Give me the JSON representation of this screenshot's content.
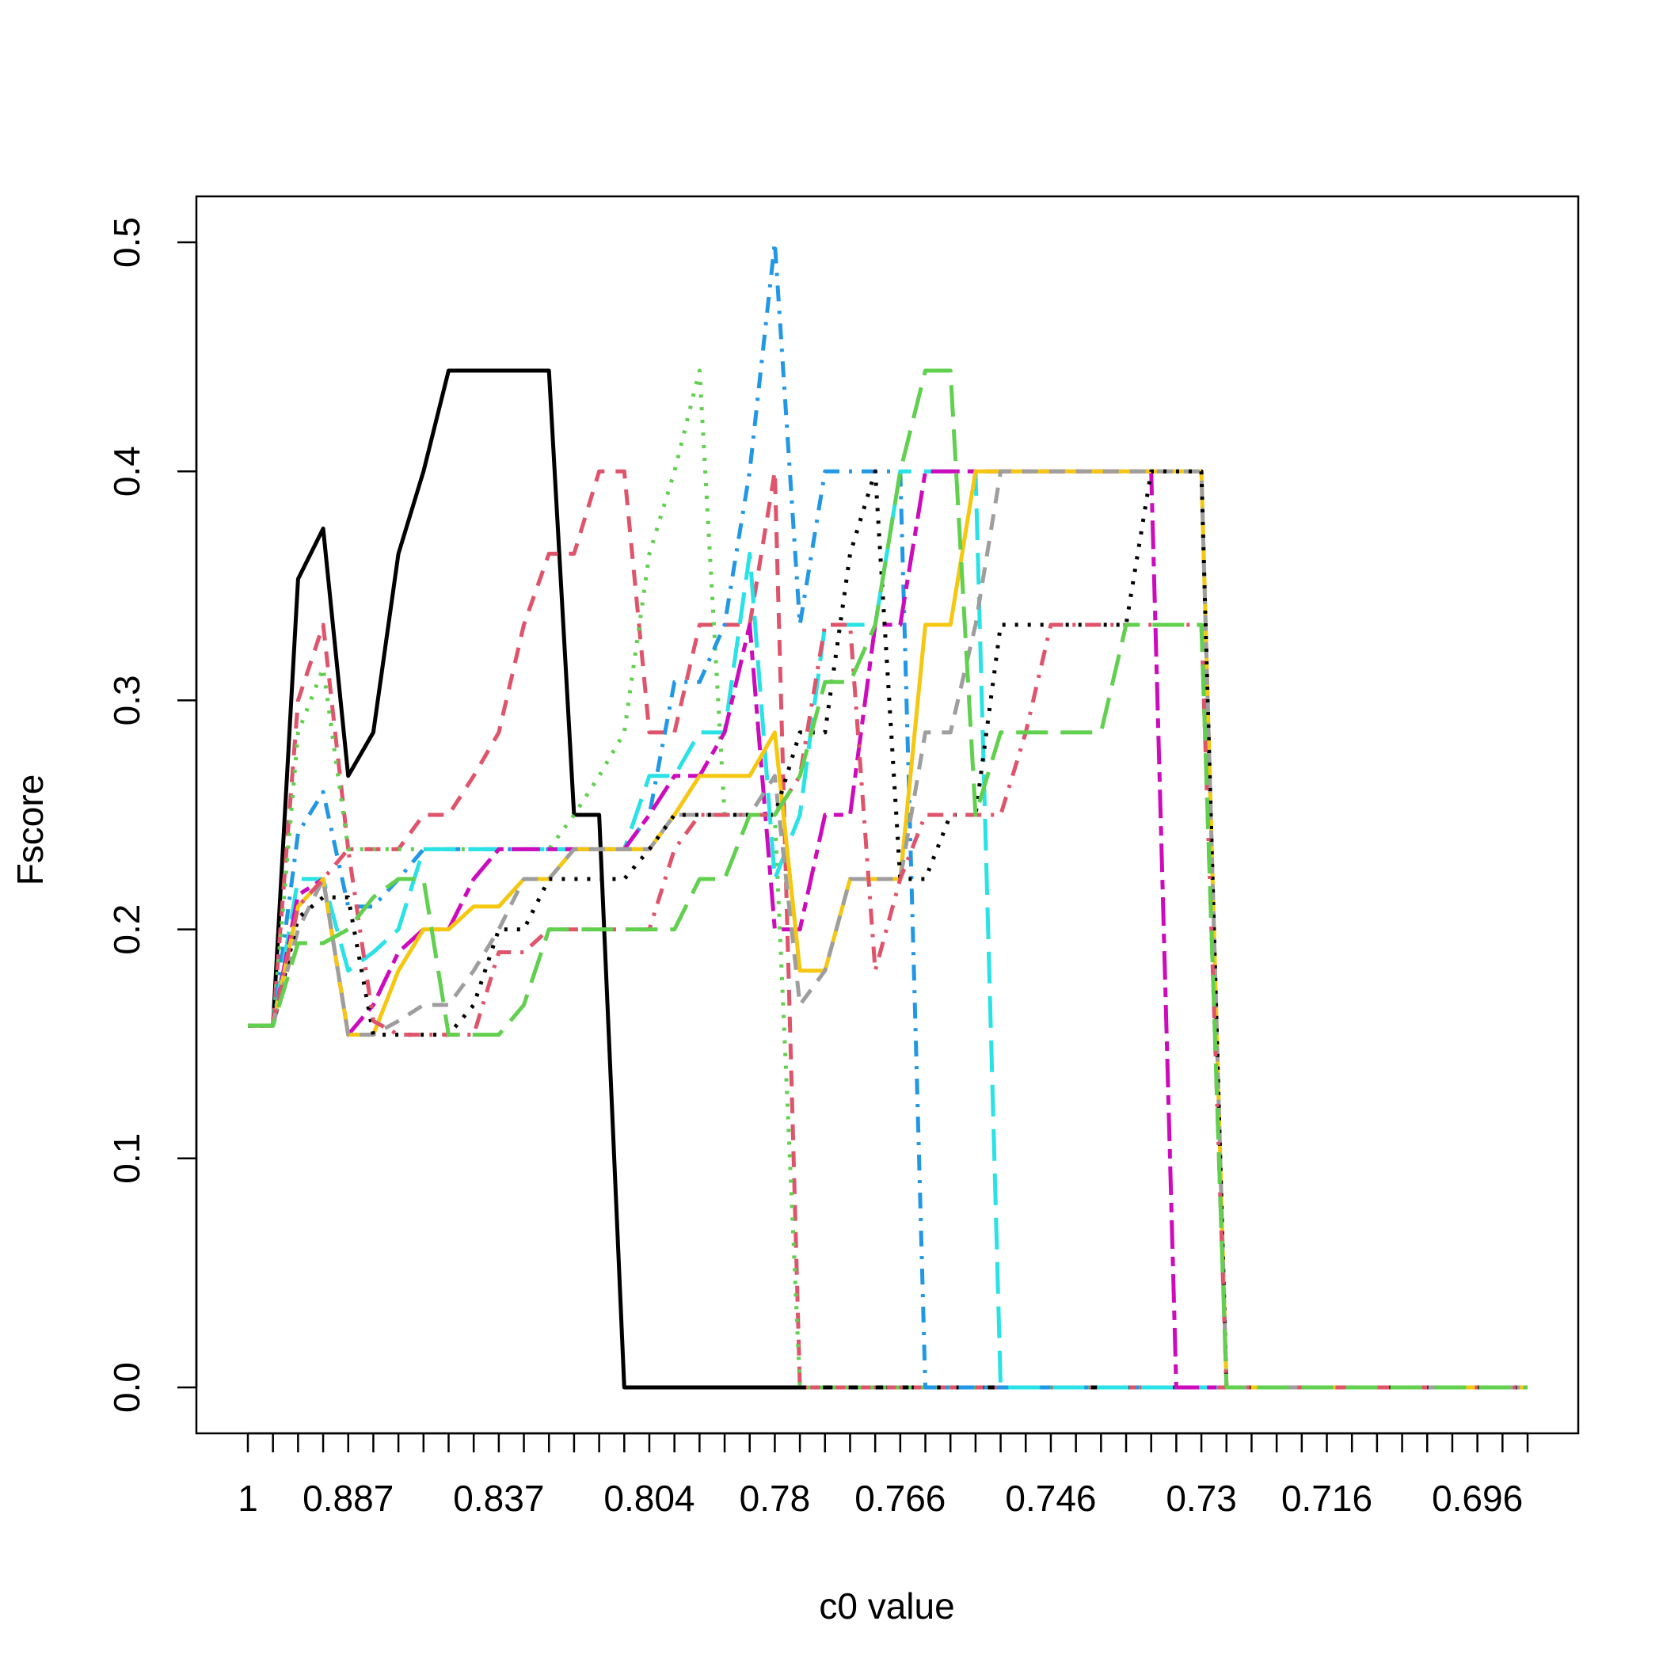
{
  "chart_data": {
    "type": "line",
    "title": "",
    "xlabel": "c0 value",
    "ylabel": "Fscore",
    "ylim": [
      0,
      0.5
    ],
    "y_ticks": [
      "0.0",
      "0.1",
      "0.2",
      "0.3",
      "0.4",
      "0.5"
    ],
    "x_tick_count": 52,
    "x_tick_labels": [
      {
        "index": 1,
        "label": "1"
      },
      {
        "index": 5,
        "label": "0.887"
      },
      {
        "index": 11,
        "label": "0.837"
      },
      {
        "index": 17,
        "label": "0.804"
      },
      {
        "index": 22,
        "label": "0.78"
      },
      {
        "index": 27,
        "label": "0.766"
      },
      {
        "index": 33,
        "label": "0.746"
      },
      {
        "index": 39,
        "label": "0.73"
      },
      {
        "index": 44,
        "label": "0.716"
      },
      {
        "index": 50,
        "label": "0.696"
      }
    ],
    "grid": false,
    "legend": "none",
    "series": [
      {
        "color": "#000000",
        "dash": "solid",
        "values": [
          0.158,
          0.158,
          0.353,
          0.375,
          0.267,
          0.286,
          0.364,
          0.4,
          0.444,
          0.444,
          0.444,
          0.444,
          0.444,
          0.25,
          0.25,
          0,
          0,
          0,
          0,
          0,
          0,
          0,
          0,
          0,
          0,
          0,
          0,
          0,
          0,
          0,
          0,
          0,
          0,
          0,
          0,
          0,
          0,
          0,
          0,
          0,
          0,
          0,
          0,
          0,
          0,
          0,
          0,
          0,
          0,
          0,
          0,
          0
        ]
      },
      {
        "color": "#DF536B",
        "dash": "dashed",
        "values": [
          0.158,
          0.158,
          0.3,
          0.333,
          0.235,
          0.235,
          0.235,
          0.25,
          0.25,
          0.267,
          0.286,
          0.333,
          0.364,
          0.364,
          0.4,
          0.4,
          0.286,
          0.286,
          0.333,
          0.333,
          0.333,
          0.4,
          0,
          0,
          0,
          0,
          0,
          0,
          0,
          0,
          0,
          0,
          0,
          0,
          0,
          0,
          0,
          0,
          0,
          0,
          0,
          0,
          0,
          0,
          0,
          0,
          0,
          0,
          0,
          0,
          0,
          0
        ]
      },
      {
        "color": "#61D04F",
        "dash": "dotted",
        "values": [
          0.158,
          0.158,
          0.286,
          0.314,
          0.235,
          0.235,
          0.235,
          0.235,
          0.235,
          0.235,
          0.235,
          0.235,
          0.235,
          0.25,
          0.267,
          0.286,
          0.364,
          0.4,
          0.444,
          0.25,
          0.25,
          0.25,
          0,
          0,
          0,
          0,
          0,
          0,
          0,
          0,
          0,
          0,
          0,
          0,
          0,
          0,
          0,
          0,
          0,
          0,
          0,
          0,
          0,
          0,
          0,
          0,
          0,
          0,
          0,
          0,
          0,
          0
        ]
      },
      {
        "color": "#2297E6",
        "dash": "dotdash",
        "values": [
          0.158,
          0.158,
          0.242,
          0.26,
          0.21,
          0.21,
          0.222,
          0.235,
          0.235,
          0.235,
          0.235,
          0.235,
          0.235,
          0.235,
          0.235,
          0.235,
          0.25,
          0.308,
          0.308,
          0.333,
          0.4,
          0.5,
          0.333,
          0.4,
          0.4,
          0.4,
          0.4,
          0,
          0,
          0,
          0,
          0,
          0,
          0,
          0,
          0,
          0,
          0,
          0,
          0,
          0,
          0,
          0,
          0,
          0,
          0,
          0,
          0,
          0,
          0,
          0,
          0
        ]
      },
      {
        "color": "#28E2E5",
        "dash": "longdash",
        "values": [
          0.158,
          0.158,
          0.222,
          0.222,
          0.182,
          0.19,
          0.2,
          0.235,
          0.235,
          0.235,
          0.235,
          0.235,
          0.235,
          0.235,
          0.235,
          0.235,
          0.267,
          0.267,
          0.286,
          0.286,
          0.364,
          0.222,
          0.25,
          0.333,
          0.333,
          0.333,
          0.4,
          0.4,
          0.4,
          0.4,
          0,
          0,
          0,
          0,
          0,
          0,
          0,
          0,
          0,
          0,
          0,
          0,
          0,
          0,
          0,
          0,
          0,
          0,
          0,
          0,
          0,
          0
        ]
      },
      {
        "color": "#CD0BBC",
        "dash": "twodash",
        "values": [
          0.158,
          0.158,
          0.215,
          0.222,
          0.154,
          0.167,
          0.19,
          0.2,
          0.2,
          0.222,
          0.235,
          0.235,
          0.235,
          0.235,
          0.235,
          0.235,
          0.25,
          0.267,
          0.267,
          0.286,
          0.333,
          0.2,
          0.2,
          0.25,
          0.25,
          0.333,
          0.333,
          0.4,
          0.4,
          0.4,
          0.4,
          0.4,
          0.4,
          0.4,
          0.4,
          0.4,
          0.4,
          0,
          0,
          0,
          0,
          0,
          0,
          0,
          0,
          0,
          0,
          0,
          0,
          0,
          0,
          0
        ]
      },
      {
        "color": "#F5C710",
        "dash": "solid",
        "values": [
          0.158,
          0.158,
          0.21,
          0.222,
          0.154,
          0.154,
          0.182,
          0.2,
          0.2,
          0.21,
          0.21,
          0.222,
          0.222,
          0.235,
          0.235,
          0.235,
          0.235,
          0.25,
          0.267,
          0.267,
          0.267,
          0.286,
          0.182,
          0.182,
          0.222,
          0.222,
          0.222,
          0.333,
          0.333,
          0.4,
          0.4,
          0.4,
          0.4,
          0.4,
          0.4,
          0.4,
          0.4,
          0.4,
          0.4,
          0,
          0,
          0,
          0,
          0,
          0,
          0,
          0,
          0,
          0,
          0,
          0,
          0
        ]
      },
      {
        "color": "#9E9E9E",
        "dash": "dashed",
        "values": [
          0.158,
          0.158,
          0.2,
          0.222,
          0.154,
          0.154,
          0.16,
          0.167,
          0.167,
          0.182,
          0.2,
          0.222,
          0.222,
          0.235,
          0.235,
          0.235,
          0.235,
          0.25,
          0.25,
          0.25,
          0.25,
          0.267,
          0.167,
          0.182,
          0.222,
          0.222,
          0.222,
          0.286,
          0.286,
          0.333,
          0.4,
          0.4,
          0.4,
          0.4,
          0.4,
          0.4,
          0.4,
          0.4,
          0.4,
          0,
          0,
          0,
          0,
          0,
          0,
          0,
          0,
          0,
          0,
          0,
          0,
          0
        ]
      },
      {
        "color": "#000000",
        "dash": "dotted",
        "values": [
          0.158,
          0.158,
          0.205,
          0.214,
          0.214,
          0.154,
          0.154,
          0.154,
          0.154,
          0.167,
          0.2,
          0.2,
          0.222,
          0.222,
          0.222,
          0.222,
          0.235,
          0.25,
          0.25,
          0.25,
          0.25,
          0.25,
          0.286,
          0.286,
          0.364,
          0.4,
          0.222,
          0.222,
          0.25,
          0.25,
          0.333,
          0.333,
          0.333,
          0.333,
          0.333,
          0.333,
          0.4,
          0.4,
          0.4,
          0,
          0,
          0,
          0,
          0,
          0,
          0,
          0,
          0,
          0,
          0,
          0,
          0
        ]
      },
      {
        "color": "#DF536B",
        "dotdash": true,
        "dash": "dotdash",
        "values": [
          0.158,
          0.158,
          0.21,
          0.222,
          0.235,
          0.16,
          0.154,
          0.154,
          0.154,
          0.154,
          0.19,
          0.19,
          0.2,
          0.2,
          0.2,
          0.2,
          0.2,
          0.235,
          0.25,
          0.25,
          0.25,
          0.25,
          0.267,
          0.333,
          0.333,
          0.182,
          0.222,
          0.25,
          0.25,
          0.25,
          0.25,
          0.286,
          0.333,
          0.333,
          0.333,
          0.333,
          0.333,
          0.333,
          0.333,
          0,
          0,
          0,
          0,
          0,
          0,
          0,
          0,
          0,
          0,
          0,
          0,
          0
        ]
      },
      {
        "color": "#61D04F",
        "dash": "longdash",
        "values": [
          0.158,
          0.158,
          0.194,
          0.194,
          0.2,
          0.214,
          0.222,
          0.222,
          0.154,
          0.154,
          0.154,
          0.167,
          0.2,
          0.2,
          0.2,
          0.2,
          0.2,
          0.2,
          0.222,
          0.222,
          0.25,
          0.25,
          0.267,
          0.308,
          0.308,
          0.333,
          0.4,
          0.444,
          0.444,
          0.25,
          0.286,
          0.286,
          0.286,
          0.286,
          0.286,
          0.333,
          0.333,
          0.333,
          0.333,
          0,
          0,
          0,
          0,
          0,
          0,
          0,
          0,
          0,
          0,
          0,
          0,
          0
        ]
      }
    ]
  }
}
